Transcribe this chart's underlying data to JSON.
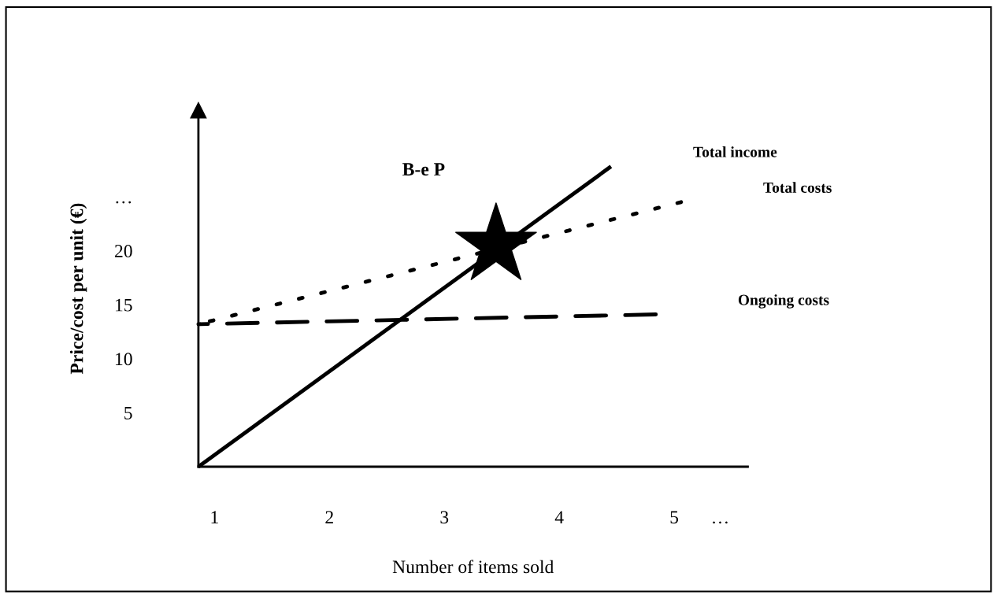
{
  "chart_data": {
    "type": "line",
    "xlabel": "Number of items sold",
    "ylabel": "Price/cost per unit (€)",
    "xlim": [
      0.86,
      5.64
    ],
    "ylim": [
      0,
      33
    ],
    "xticks": [
      1,
      2,
      3,
      4,
      5,
      {
        "value": 5.4,
        "label": "…"
      }
    ],
    "yticks": [
      5,
      10,
      15,
      20,
      {
        "value": 25,
        "label": "…"
      }
    ],
    "grid": false,
    "legend": false,
    "series": [
      {
        "name": "Total income",
        "color": "#000000",
        "line_style": "solid",
        "x": [
          0.86,
          4.45
        ],
        "values": [
          0,
          27.8
        ]
      },
      {
        "name": "Total costs",
        "color": "#000000",
        "line_style": "dotted",
        "x": [
          0.86,
          5.06
        ],
        "values": [
          13.2,
          24.5
        ]
      },
      {
        "name": "Ongoing costs",
        "color": "#000000",
        "line_style": "dashed",
        "x": [
          0.86,
          4.84
        ],
        "values": [
          13.2,
          14.1
        ]
      },
      {
        "type": "scatter",
        "color": "#000000",
        "marker": "star",
        "x": [
          3.45
        ],
        "values": [
          20.5
        ]
      }
    ],
    "annotations": [
      "B-e P"
    ]
  }
}
